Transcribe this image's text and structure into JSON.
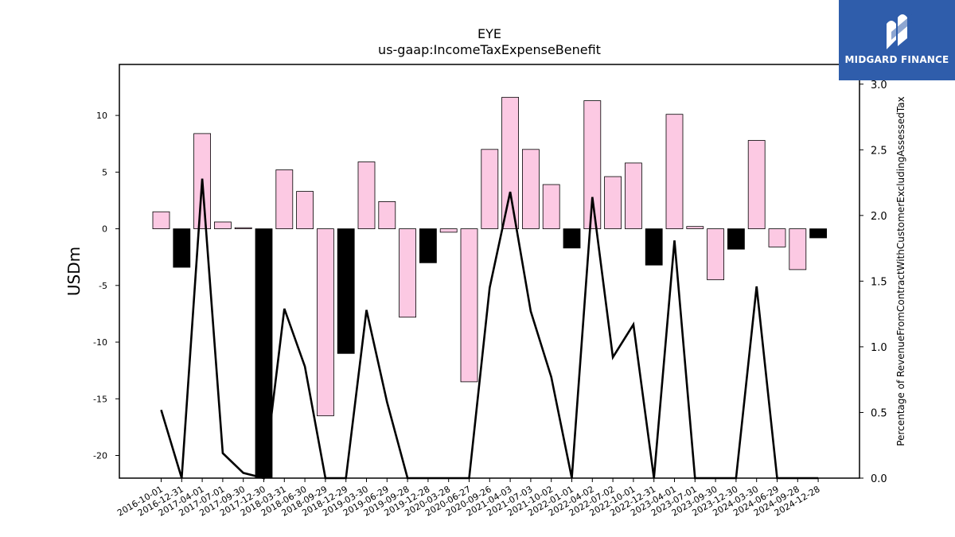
{
  "brand": {
    "name": "MIDGARD FINANCE",
    "bg_color": "#2f5dab"
  },
  "chart_data": {
    "type": "bar",
    "title": "EYE",
    "subtitle": "us-gaap:IncomeTaxExpenseBenefit",
    "ylabel": "USDm",
    "y2label": "Percentage of RevenueFromContractWithCustomerExcludingAssessedTax",
    "ylim": [
      -22,
      14.5
    ],
    "y2lim": [
      0,
      3.15
    ],
    "yticks": [
      -20,
      -15,
      -10,
      -5,
      0,
      5,
      10
    ],
    "y2ticks": [
      "0.0",
      "0.5",
      "1.0",
      "1.5",
      "2.0",
      "2.5",
      "3.0"
    ],
    "categories": [
      "2016-10-01",
      "2016-12-31",
      "2017-04-01",
      "2017-07-01",
      "2017-09-30",
      "2017-12-30",
      "2018-03-31",
      "2018-06-30",
      "2018-09-29",
      "2018-12-29",
      "2019-03-30",
      "2019-06-29",
      "2019-09-28",
      "2019-12-28",
      "2020-03-28",
      "2020-06-27",
      "2020-09-26",
      "2021-04-03",
      "2021-07-03",
      "2021-10-02",
      "2022-01-01",
      "2022-04-02",
      "2022-07-02",
      "2022-10-01",
      "2022-12-31",
      "2023-04-01",
      "2023-07-01",
      "2023-09-30",
      "2023-12-30",
      "2024-03-30",
      "2024-06-29",
      "2024-09-28",
      "2024-12-28"
    ],
    "series": [
      {
        "values": [
          1.5,
          -3.4,
          8.4,
          0.6,
          0.1,
          -23.0,
          5.2,
          3.3,
          -16.5,
          -11.0,
          5.9,
          2.4,
          -7.8,
          -3.0,
          -0.3,
          -13.5,
          7.0,
          11.6,
          7.0,
          3.9,
          -1.7,
          11.3,
          4.6,
          5.8,
          -3.2,
          10.1,
          0.2,
          -4.5,
          -1.8,
          7.8,
          -1.6,
          -3.6,
          -0.8
        ],
        "colors": [
          "pink",
          "black",
          "pink",
          "pink",
          "pink",
          "black",
          "pink",
          "pink",
          "pink",
          "black",
          "pink",
          "pink",
          "pink",
          "black",
          "pink",
          "pink",
          "pink",
          "pink",
          "pink",
          "pink",
          "black",
          "pink",
          "pink",
          "pink",
          "black",
          "pink",
          "pink",
          "pink",
          "black",
          "pink",
          "pink",
          "pink",
          "black"
        ]
      },
      {
        "axis": "right",
        "values": [
          0.52,
          0.0,
          2.28,
          0.19,
          0.04,
          0.0,
          1.29,
          0.85,
          0.0,
          0.0,
          1.28,
          0.58,
          0.0,
          0.0,
          0.0,
          0.0,
          1.45,
          2.18,
          1.27,
          0.77,
          0.0,
          2.14,
          0.92,
          1.17,
          0.0,
          1.81,
          0.0,
          0.0,
          0.0,
          1.46,
          0.0,
          0.0,
          0.0
        ]
      }
    ],
    "colors": {
      "pink": "#fcc9e3",
      "black": "#000000",
      "line": "#000000"
    },
    "grid": false,
    "legend": "none"
  }
}
